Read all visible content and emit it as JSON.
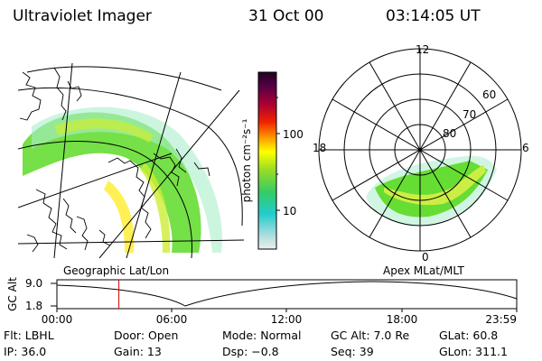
{
  "header": {
    "instrument": "Ultraviolet Imager",
    "date": "31 Oct 00",
    "time": "03:14:05 UT"
  },
  "colorbar": {
    "unit_label": "photon cm⁻²s⁻¹",
    "tick_labels": [
      "100",
      "10"
    ]
  },
  "geo_panel": {
    "label": "Geographic Lat/Lon"
  },
  "polar_panel": {
    "label": "Apex MLat/MLT",
    "mlt_labels": {
      "top": "12",
      "left": "18",
      "right": "6",
      "bottom": "0"
    },
    "mlat_labels": [
      "60",
      "70",
      "80"
    ]
  },
  "altitude_plot": {
    "ylabel": "GC Alt",
    "ytick_labels": [
      "9.0",
      "1.8"
    ],
    "xtick_labels": [
      "00:00",
      "06:00",
      "12:00",
      "18:00",
      "23:59"
    ],
    "cursor_hour": 3.23,
    "cursor_color": "#cc0000"
  },
  "info": {
    "filter": "Flt: LBHL",
    "door": "Door: Open",
    "mode": "Mode: Normal",
    "gc_alt": "GC Alt: 7.0 Re",
    "glat": "GLat:  60.8",
    "ip": "IP: 36.0",
    "gain": "Gain: 13",
    "dsp": "Dsp:   −0.8",
    "seq": "Seq: 39",
    "glon": "GLon: 311.1"
  }
}
